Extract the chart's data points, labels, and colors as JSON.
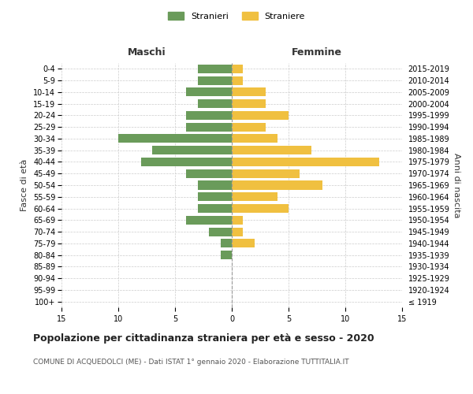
{
  "age_groups": [
    "100+",
    "95-99",
    "90-94",
    "85-89",
    "80-84",
    "75-79",
    "70-74",
    "65-69",
    "60-64",
    "55-59",
    "50-54",
    "45-49",
    "40-44",
    "35-39",
    "30-34",
    "25-29",
    "20-24",
    "15-19",
    "10-14",
    "5-9",
    "0-4"
  ],
  "birth_years": [
    "≤ 1919",
    "1920-1924",
    "1925-1929",
    "1930-1934",
    "1935-1939",
    "1940-1944",
    "1945-1949",
    "1950-1954",
    "1955-1959",
    "1960-1964",
    "1965-1969",
    "1970-1974",
    "1975-1979",
    "1980-1984",
    "1985-1989",
    "1990-1994",
    "1995-1999",
    "2000-2004",
    "2005-2009",
    "2010-2014",
    "2015-2019"
  ],
  "maschi": [
    0,
    0,
    0,
    0,
    1,
    1,
    2,
    4,
    3,
    3,
    3,
    4,
    8,
    7,
    10,
    4,
    4,
    3,
    4,
    3,
    3
  ],
  "femmine": [
    0,
    0,
    0,
    0,
    0,
    2,
    1,
    1,
    5,
    4,
    8,
    6,
    13,
    7,
    4,
    3,
    5,
    3,
    3,
    1,
    1
  ],
  "maschi_color": "#6a9b5a",
  "femmine_color": "#f0c040",
  "title": "Popolazione per cittadinanza straniera per età e sesso - 2020",
  "subtitle": "COMUNE DI ACQUEDOLCI (ME) - Dati ISTAT 1° gennaio 2020 - Elaborazione TUTTITALIA.IT",
  "xlabel_left": "Maschi",
  "xlabel_right": "Femmine",
  "ylabel_left": "Fasce di età",
  "ylabel_right": "Anni di nascita",
  "legend_maschi": "Stranieri",
  "legend_femmine": "Straniere",
  "xlim": 15,
  "background_color": "#ffffff",
  "grid_color": "#cccccc"
}
